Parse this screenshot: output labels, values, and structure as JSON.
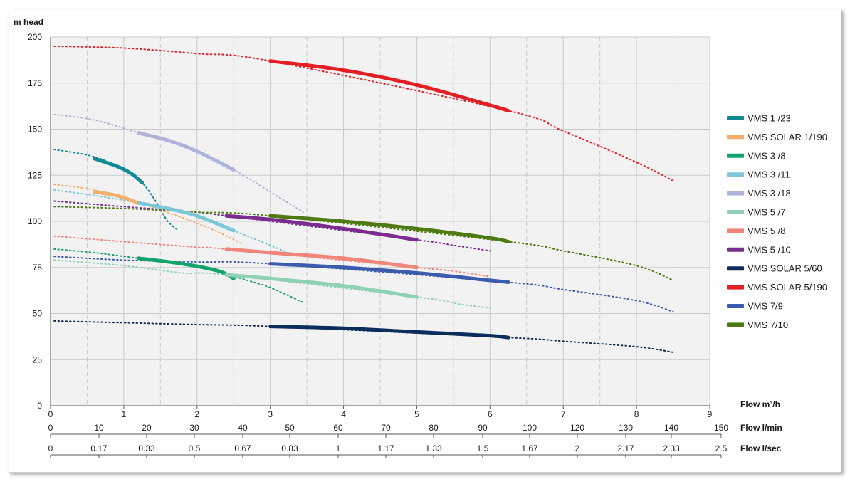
{
  "chart_data": {
    "type": "line",
    "ylabel": "m head",
    "ylim": [
      0,
      200
    ],
    "yticks": [
      0,
      25,
      50,
      75,
      100,
      125,
      150,
      175,
      200
    ],
    "xlim": [
      0,
      9
    ],
    "grid": true,
    "legend_position": "right",
    "axes": [
      {
        "label": "Flow m³/h",
        "ticks": [
          "0",
          "1",
          "2",
          "3",
          "4",
          "5",
          "6",
          "7",
          "8",
          "9"
        ]
      },
      {
        "label": "Flow l/min",
        "ticks": [
          "0",
          "10",
          "20",
          "30",
          "40",
          "50",
          "60",
          "70",
          "80",
          "90",
          "100",
          "120",
          "130",
          "140",
          "150"
        ]
      },
      {
        "label": "Flow l/sec",
        "ticks": [
          "0",
          "0.17",
          "0.33",
          "0.5",
          "0.67",
          "0.83",
          "1",
          "1.17",
          "1.33",
          "1.5",
          "1.67",
          "2",
          "2.17",
          "2.33",
          "2.5"
        ]
      }
    ],
    "series": [
      {
        "name": "VMS 1 /23",
        "color": "#0e8a94",
        "dotted": [
          [
            0.05,
            139
          ],
          [
            0.6,
            135
          ],
          [
            1.0,
            128
          ],
          [
            1.25,
            121
          ],
          [
            1.45,
            110
          ],
          [
            1.6,
            100
          ],
          [
            1.75,
            95
          ]
        ],
        "solid": [
          [
            0.6,
            134
          ],
          [
            0.9,
            130
          ],
          [
            1.1,
            126
          ],
          [
            1.25,
            121
          ]
        ]
      },
      {
        "name": "VMS SOLAR 1/190",
        "color": "#f3b06c",
        "dotted": [
          [
            0.05,
            120
          ],
          [
            0.6,
            117
          ],
          [
            1.2,
            110
          ],
          [
            1.8,
            102
          ],
          [
            2.3,
            94
          ],
          [
            2.6,
            88
          ]
        ],
        "solid": [
          [
            0.6,
            116
          ],
          [
            0.9,
            114
          ],
          [
            1.2,
            110
          ]
        ]
      },
      {
        "name": "VMS 3 /8",
        "color": "#14a36a",
        "dotted": [
          [
            0.05,
            85
          ],
          [
            0.6,
            83
          ],
          [
            1.2,
            80
          ],
          [
            2.0,
            76
          ],
          [
            2.6,
            69
          ],
          [
            3.0,
            64
          ],
          [
            3.45,
            56
          ]
        ],
        "solid": [
          [
            1.2,
            80
          ],
          [
            1.8,
            77
          ],
          [
            2.3,
            73
          ],
          [
            2.5,
            69
          ]
        ]
      },
      {
        "name": "VMS 3 /11",
        "color": "#7bc7d8",
        "dotted": [
          [
            0.05,
            117
          ],
          [
            0.6,
            114
          ],
          [
            1.2,
            110
          ],
          [
            2.0,
            103
          ],
          [
            2.5,
            95
          ],
          [
            3.0,
            87
          ],
          [
            3.3,
            82
          ]
        ],
        "solid": [
          [
            1.2,
            110
          ],
          [
            1.6,
            107
          ],
          [
            2.0,
            103
          ],
          [
            2.5,
            95
          ]
        ]
      },
      {
        "name": "VMS 3 /18",
        "color": "#afb3db",
        "dotted": [
          [
            0.05,
            158
          ],
          [
            0.6,
            155
          ],
          [
            1.2,
            148
          ],
          [
            2.0,
            138
          ],
          [
            2.5,
            128
          ],
          [
            3.0,
            116
          ],
          [
            3.45,
            105
          ]
        ],
        "solid": [
          [
            1.2,
            148
          ],
          [
            1.6,
            144
          ],
          [
            2.0,
            138
          ],
          [
            2.5,
            128
          ]
        ]
      },
      {
        "name": "VMS 5 /7",
        "color": "#8ed1b3",
        "dotted": [
          [
            0.05,
            79
          ],
          [
            1.0,
            76
          ],
          [
            1.8,
            72
          ],
          [
            2.4,
            71
          ],
          [
            5.0,
            59
          ],
          [
            5.6,
            55
          ],
          [
            6.0,
            53
          ]
        ],
        "solid": [
          [
            2.4,
            71
          ],
          [
            3.0,
            69
          ],
          [
            4.0,
            65
          ],
          [
            5.0,
            59
          ]
        ]
      },
      {
        "name": "VMS 5 /8",
        "color": "#f0857a",
        "dotted": [
          [
            0.05,
            92
          ],
          [
            1.0,
            89
          ],
          [
            2.0,
            86
          ],
          [
            2.4,
            85
          ],
          [
            5.0,
            75
          ],
          [
            5.5,
            73
          ],
          [
            6.0,
            70
          ]
        ],
        "solid": [
          [
            2.4,
            85
          ],
          [
            3.0,
            83
          ],
          [
            4.0,
            80
          ],
          [
            5.0,
            75
          ]
        ]
      },
      {
        "name": "VMS 5 /10",
        "color": "#7b2d8e",
        "dotted": [
          [
            0.05,
            111
          ],
          [
            1.0,
            108
          ],
          [
            2.0,
            105
          ],
          [
            2.4,
            103
          ],
          [
            5.0,
            90
          ],
          [
            5.5,
            87
          ],
          [
            6.0,
            84
          ]
        ],
        "solid": [
          [
            2.4,
            103
          ],
          [
            3.0,
            101
          ],
          [
            4.0,
            96
          ],
          [
            5.0,
            90
          ]
        ]
      },
      {
        "name": "VMS SOLAR 5/60",
        "color": "#0b2d5c",
        "dotted": [
          [
            0.05,
            46
          ],
          [
            1.0,
            45
          ],
          [
            2.0,
            44
          ],
          [
            3.0,
            43
          ],
          [
            6.25,
            37
          ],
          [
            7.0,
            35
          ],
          [
            8.0,
            32
          ],
          [
            8.5,
            29
          ]
        ],
        "solid": [
          [
            3.0,
            43
          ],
          [
            4.0,
            42
          ],
          [
            5.0,
            40
          ],
          [
            6.0,
            38
          ],
          [
            6.25,
            37
          ]
        ]
      },
      {
        "name": "VMS SOLAR 5/190",
        "color": "#e31e24",
        "dotted": [
          [
            0.05,
            195
          ],
          [
            1.0,
            194
          ],
          [
            2.0,
            191
          ],
          [
            3.0,
            187
          ],
          [
            6.25,
            160
          ],
          [
            7.0,
            149
          ],
          [
            8.0,
            132
          ],
          [
            8.5,
            122
          ]
        ],
        "solid": [
          [
            3.0,
            187
          ],
          [
            4.0,
            182
          ],
          [
            5.0,
            174
          ],
          [
            6.0,
            163
          ],
          [
            6.25,
            160
          ]
        ]
      },
      {
        "name": "VMS 7/9",
        "color": "#3b5bad",
        "dotted": [
          [
            0.05,
            81
          ],
          [
            1.0,
            79
          ],
          [
            2.0,
            78
          ],
          [
            3.0,
            77
          ],
          [
            6.25,
            67
          ],
          [
            7.0,
            63
          ],
          [
            8.0,
            57
          ],
          [
            8.5,
            51
          ]
        ],
        "solid": [
          [
            3.0,
            77
          ],
          [
            4.0,
            75
          ],
          [
            5.0,
            72
          ],
          [
            6.0,
            68
          ],
          [
            6.25,
            67
          ]
        ]
      },
      {
        "name": "VMS 7/10",
        "color": "#4d7a12",
        "dotted": [
          [
            0.05,
            108
          ],
          [
            1.0,
            107
          ],
          [
            2.0,
            105
          ],
          [
            3.0,
            103
          ],
          [
            6.25,
            89
          ],
          [
            7.0,
            84
          ],
          [
            8.0,
            76
          ],
          [
            8.5,
            68
          ]
        ],
        "solid": [
          [
            3.0,
            103
          ],
          [
            4.0,
            100
          ],
          [
            5.0,
            96
          ],
          [
            6.0,
            91
          ],
          [
            6.25,
            89
          ]
        ]
      }
    ]
  }
}
